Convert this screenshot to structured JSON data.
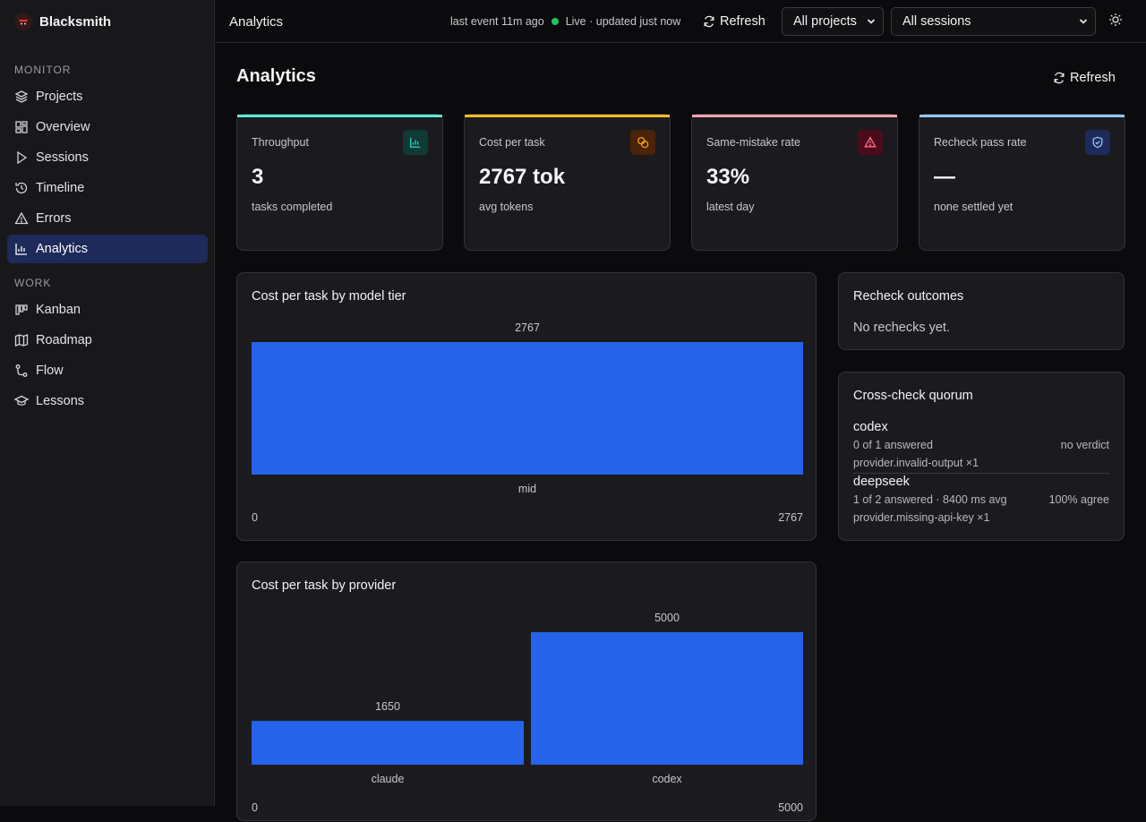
{
  "sidebar": {
    "brand": "Blacksmith",
    "sections": [
      {
        "label": "MONITOR",
        "items": [
          {
            "label": "Projects",
            "icon": "layers-icon"
          },
          {
            "label": "Overview",
            "icon": "dashboard-icon"
          },
          {
            "label": "Sessions",
            "icon": "play-icon"
          },
          {
            "label": "Timeline",
            "icon": "history-icon"
          },
          {
            "label": "Errors",
            "icon": "warning-icon"
          },
          {
            "label": "Analytics",
            "icon": "bar-chart-icon",
            "active": true
          }
        ]
      },
      {
        "label": "WORK",
        "items": [
          {
            "label": "Kanban",
            "icon": "kanban-icon"
          },
          {
            "label": "Roadmap",
            "icon": "map-icon"
          },
          {
            "label": "Flow",
            "icon": "flow-icon"
          },
          {
            "label": "Lessons",
            "icon": "graduation-cap-icon"
          }
        ]
      }
    ]
  },
  "topbar": {
    "title": "Analytics",
    "last_event": "last event 11m ago",
    "live_status": "Live · updated just now",
    "refresh_label": "Refresh",
    "project_select": "All projects",
    "session_select": "All sessions"
  },
  "page": {
    "title": "Analytics",
    "refresh_label": "Refresh"
  },
  "stats": [
    {
      "label": "Throughput",
      "value": "3",
      "sub": "tasks completed",
      "accent": "#5eead4",
      "icon": "bar-chart-icon",
      "icon_color": "#2dd4bf",
      "icon_bg": "#0f3a36"
    },
    {
      "label": "Cost per task",
      "value": "2767 tok",
      "sub": "avg tokens",
      "accent": "#fbbf24",
      "icon": "coins-icon",
      "icon_color": "#f59e0b",
      "icon_bg": "#4a2308"
    },
    {
      "label": "Same-mistake rate",
      "value": "33%",
      "sub": "latest day",
      "accent": "#fda4af",
      "icon": "warning-icon",
      "icon_color": "#fb7185",
      "icon_bg": "#4c0b1c"
    },
    {
      "label": "Recheck pass rate",
      "value": "—",
      "sub": "none settled yet",
      "accent": "#93c5fd",
      "icon": "shield-check-icon",
      "icon_color": "#93c5fd",
      "icon_bg": "#1e2a5a"
    }
  ],
  "chart_data": [
    {
      "type": "bar",
      "title": "Cost per task by model tier",
      "categories": [
        "mid"
      ],
      "values": [
        2767
      ],
      "data_labels": [
        "2767"
      ],
      "ylim": [
        0,
        2767
      ],
      "range_labels": [
        "0",
        "2767"
      ],
      "bar_color": "#2563eb"
    },
    {
      "type": "bar",
      "title": "Cost per task by provider",
      "categories": [
        "claude",
        "codex"
      ],
      "values": [
        1650,
        5000
      ],
      "data_labels": [
        "1650",
        "5000"
      ],
      "ylim": [
        0,
        5000
      ],
      "range_labels": [
        "0",
        "5000"
      ],
      "bar_color": "#2563eb"
    }
  ],
  "recheck": {
    "title": "Recheck outcomes",
    "empty": "No rechecks yet."
  },
  "quorum": {
    "title": "Cross-check quorum",
    "rows": [
      {
        "name": "codex",
        "detail": "0 of 1 answered",
        "verdict": "no verdict",
        "error": "provider.invalid-output ×1"
      },
      {
        "name": "deepseek",
        "detail": "1 of 2 answered · 8400 ms avg",
        "verdict": "100% agree",
        "error": "provider.missing-api-key ×1"
      }
    ]
  }
}
